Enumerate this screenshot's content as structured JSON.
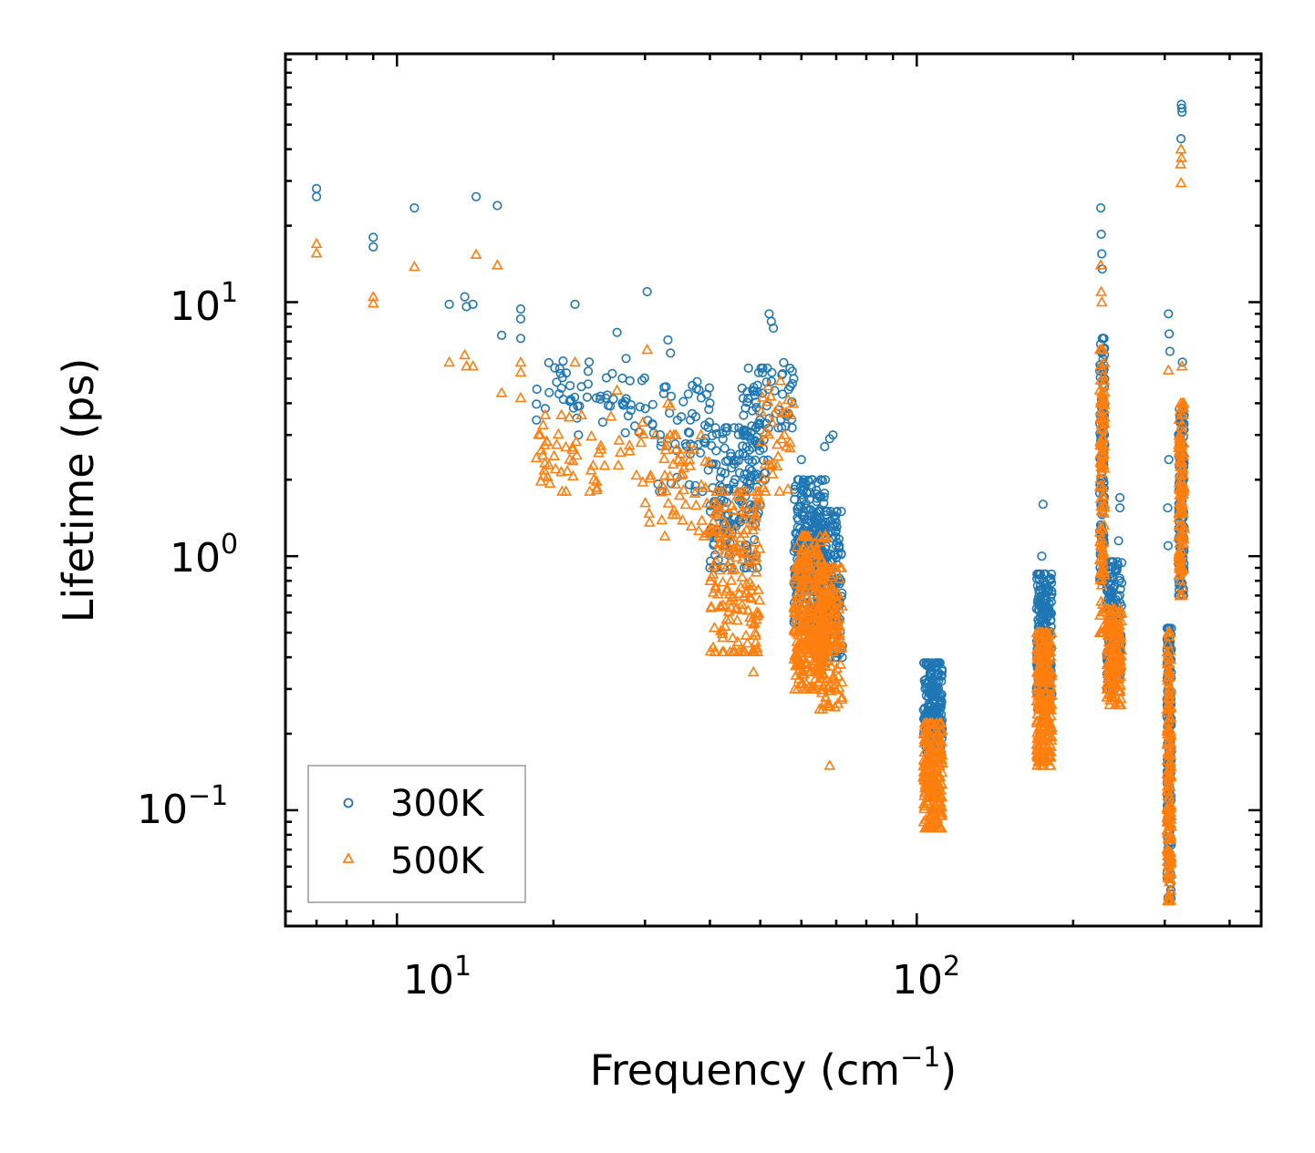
{
  "chart_data": {
    "type": "scatter",
    "title": "",
    "xlabel": "Frequency (cm",
    "xlabel_exp": "−1",
    "xlabel_tail": ")",
    "ylabel": "Lifetime (ps)",
    "xscale": "log",
    "yscale": "log",
    "xlim": [
      6.1,
      460
    ],
    "ylim": [
      0.035,
      95
    ],
    "x_ticks": [
      {
        "value": 10,
        "base": "10",
        "exp": "1"
      },
      {
        "value": 100,
        "base": "10",
        "exp": "2"
      }
    ],
    "y_ticks": [
      {
        "value": 0.1,
        "base": "10",
        "exp": "−1"
      },
      {
        "value": 1,
        "base": "10",
        "exp": "0"
      },
      {
        "value": 10,
        "base": "10",
        "exp": "1"
      }
    ],
    "legend_position": "lower-left",
    "series": [
      {
        "name": "300K",
        "marker": "circle",
        "color": "#1f77b4",
        "discrete_points": [
          [
            7.0,
            28.0
          ],
          [
            7.0,
            26.0
          ],
          [
            9.0,
            18.0
          ],
          [
            9.0,
            16.5
          ],
          [
            10.8,
            23.5
          ],
          [
            12.6,
            9.8
          ],
          [
            13.5,
            10.5
          ],
          [
            13.6,
            9.6
          ],
          [
            14.0,
            9.8
          ],
          [
            14.2,
            26.0
          ],
          [
            15.6,
            24.0
          ],
          [
            15.9,
            7.4
          ],
          [
            17.3,
            9.4
          ],
          [
            17.3,
            8.6
          ],
          [
            17.3,
            7.2
          ],
          [
            22.0,
            9.8
          ],
          [
            26.5,
            7.6
          ],
          [
            30.3,
            11.0
          ],
          [
            33.2,
            7.1
          ],
          [
            33.6,
            6.3
          ],
          [
            52.0,
            9.0
          ],
          [
            52.5,
            8.4
          ],
          [
            53.0,
            7.9
          ],
          [
            37.0,
            4.7
          ],
          [
            38.5,
            4.2
          ],
          [
            40.0,
            4.0
          ],
          [
            43.0,
            3.1
          ],
          [
            45.5,
            3.2
          ],
          [
            58.0,
            5.0
          ],
          [
            60.0,
            2.4
          ],
          [
            66.5,
            2.7
          ],
          [
            68.0,
            2.9
          ],
          [
            69.0,
            3.0
          ],
          [
            175.0,
            1.6
          ],
          [
            174.0,
            1.0
          ],
          [
            226.0,
            23.5
          ],
          [
            226.5,
            18.5
          ],
          [
            227.0,
            15.5
          ],
          [
            227.5,
            13.5
          ],
          [
            246.0,
            1.7
          ],
          [
            246.0,
            1.55
          ],
          [
            244.5,
            1.15
          ],
          [
            305.0,
            9.0
          ],
          [
            306.0,
            7.5
          ],
          [
            307.0,
            6.4
          ],
          [
            323.0,
            60.0
          ],
          [
            323.5,
            58.0
          ],
          [
            324.0,
            56.0
          ],
          [
            322.5,
            44.0
          ],
          [
            324.5,
            5.8
          ],
          [
            305.5,
            2.4
          ],
          [
            304.0,
            1.55
          ],
          [
            304.5,
            1.1
          ]
        ],
        "clusters": [
          {
            "x": [
              18.5,
              30.0
            ],
            "y": [
              3.0,
              6.0
            ],
            "n": 60
          },
          {
            "x": [
              30.0,
              40.0
            ],
            "y": [
              1.8,
              5.0
            ],
            "n": 55
          },
          {
            "x": [
              40.0,
              50.0
            ],
            "y": [
              0.9,
              3.2
            ],
            "n": 160
          },
          {
            "x": [
              46.0,
              52.0
            ],
            "y": [
              2.0,
              5.5
            ],
            "n": 60
          },
          {
            "x": [
              52.0,
              58.0
            ],
            "y": [
              3.2,
              6.0
            ],
            "n": 25
          },
          {
            "x": [
              58.0,
              67.0
            ],
            "y": [
              0.55,
              2.0
            ],
            "n": 260
          },
          {
            "x": [
              64.0,
              72.0
            ],
            "y": [
              0.4,
              1.5
            ],
            "n": 170
          },
          {
            "x": [
              103.0,
              112.0
            ],
            "y": [
              0.16,
              0.38
            ],
            "n": 220
          },
          {
            "x": [
              170.0,
              182.0
            ],
            "y": [
              0.25,
              0.85
            ],
            "n": 230
          },
          {
            "x": [
              225.0,
              230.0
            ],
            "y": [
              0.8,
              7.2
            ],
            "n": 120
          },
          {
            "x": [
              232.0,
              248.0
            ],
            "y": [
              0.3,
              0.95
            ],
            "n": 150
          },
          {
            "x": [
              303.0,
              309.0
            ],
            "y": [
              0.045,
              0.52
            ],
            "n": 170
          },
          {
            "x": [
              319.0,
              327.0
            ],
            "y": [
              0.7,
              3.8
            ],
            "n": 120
          }
        ]
      },
      {
        "name": "500K",
        "marker": "triangle",
        "color": "#ff7f0e",
        "discrete_points": [
          [
            7.0,
            17.0
          ],
          [
            7.0,
            15.6
          ],
          [
            9.0,
            10.5
          ],
          [
            9.0,
            9.9
          ],
          [
            10.8,
            13.8
          ],
          [
            12.6,
            5.8
          ],
          [
            13.5,
            6.2
          ],
          [
            13.6,
            5.6
          ],
          [
            14.0,
            5.6
          ],
          [
            14.2,
            15.4
          ],
          [
            15.6,
            14.0
          ],
          [
            15.9,
            4.4
          ],
          [
            17.3,
            5.8
          ],
          [
            17.3,
            5.3
          ],
          [
            17.3,
            4.2
          ],
          [
            22.0,
            5.8
          ],
          [
            26.5,
            4.5
          ],
          [
            30.3,
            6.5
          ],
          [
            33.2,
            4.0
          ],
          [
            33.6,
            3.9
          ],
          [
            226.0,
            14.0
          ],
          [
            226.5,
            11.0
          ],
          [
            227.0,
            10.0
          ],
          [
            322.5,
            40.0
          ],
          [
            323.0,
            37.0
          ],
          [
            322.0,
            35.0
          ],
          [
            322.5,
            29.5
          ],
          [
            305.0,
            5.4
          ],
          [
            324.0,
            5.6
          ],
          [
            68.0,
            0.15
          ],
          [
            60.0,
            0.35
          ],
          [
            48.5,
            0.35
          ]
        ],
        "clusters": [
          {
            "x": [
              18.5,
              30.0
            ],
            "y": [
              1.8,
              3.6
            ],
            "n": 60
          },
          {
            "x": [
              30.0,
              40.0
            ],
            "y": [
              1.2,
              3.0
            ],
            "n": 55
          },
          {
            "x": [
              40.0,
              50.0
            ],
            "y": [
              0.42,
              1.8
            ],
            "n": 170
          },
          {
            "x": [
              50.0,
              58.0
            ],
            "y": [
              1.8,
              4.9
            ],
            "n": 35
          },
          {
            "x": [
              58.0,
              67.0
            ],
            "y": [
              0.3,
              1.2
            ],
            "n": 270
          },
          {
            "x": [
              64.0,
              72.0
            ],
            "y": [
              0.25,
              0.9
            ],
            "n": 170
          },
          {
            "x": [
              103.0,
              112.0
            ],
            "y": [
              0.085,
              0.22
            ],
            "n": 220
          },
          {
            "x": [
              170.0,
              182.0
            ],
            "y": [
              0.15,
              0.5
            ],
            "n": 230
          },
          {
            "x": [
              225.0,
              230.0
            ],
            "y": [
              0.5,
              6.5
            ],
            "n": 120
          },
          {
            "x": [
              232.0,
              248.0
            ],
            "y": [
              0.26,
              0.62
            ],
            "n": 150
          },
          {
            "x": [
              303.0,
              309.0
            ],
            "y": [
              0.044,
              0.5
            ],
            "n": 170
          },
          {
            "x": [
              319.0,
              327.0
            ],
            "y": [
              0.7,
              4.0
            ],
            "n": 120
          }
        ]
      }
    ]
  }
}
